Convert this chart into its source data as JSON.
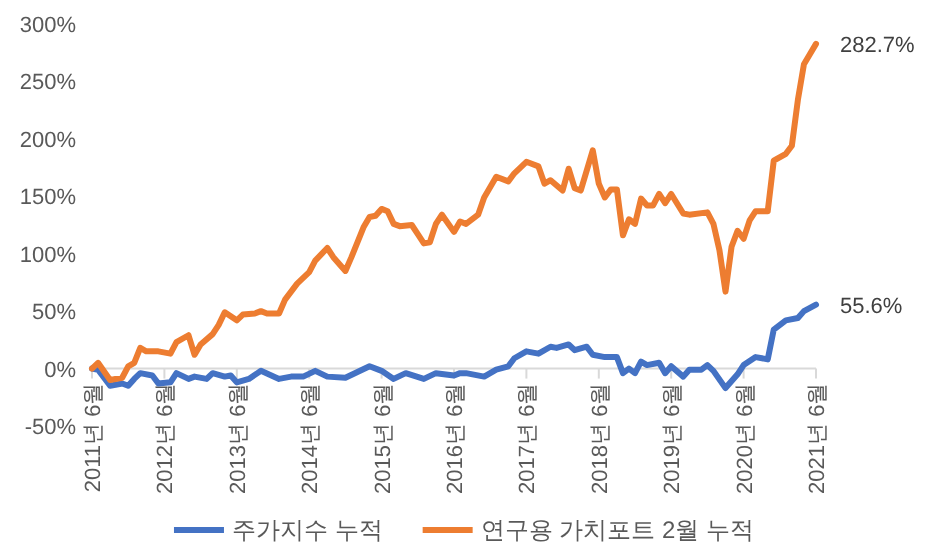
{
  "chart_data": {
    "type": "line",
    "xlim": [
      "2011-06",
      "2021-06"
    ],
    "ylim": [
      -50,
      300
    ],
    "yticks": [
      {
        "value": -50,
        "label": "-50%"
      },
      {
        "value": 0,
        "label": "0%"
      },
      {
        "value": 50,
        "label": "50%"
      },
      {
        "value": 100,
        "label": "100%"
      },
      {
        "value": 150,
        "label": "150%"
      },
      {
        "value": 200,
        "label": "200%"
      },
      {
        "value": 250,
        "label": "250%"
      },
      {
        "value": 300,
        "label": "300%"
      }
    ],
    "xticks": [
      {
        "value": "2011-06",
        "label": "2011년 6월"
      },
      {
        "value": "2012-06",
        "label": "2012년 6월"
      },
      {
        "value": "2013-06",
        "label": "2013년 6월"
      },
      {
        "value": "2014-06",
        "label": "2014년 6월"
      },
      {
        "value": "2015-06",
        "label": "2015년 6월"
      },
      {
        "value": "2016-06",
        "label": "2016년 6월"
      },
      {
        "value": "2017-06",
        "label": "2017년 6월"
      },
      {
        "value": "2018-06",
        "label": "2018년 6월"
      },
      {
        "value": "2019-06",
        "label": "2019년 6월"
      },
      {
        "value": "2020-06",
        "label": "2020년 6월"
      },
      {
        "value": "2021-06",
        "label": "2021년 6월"
      }
    ],
    "grid": false,
    "legend": "bottom",
    "marker": "none",
    "line_style": "solid",
    "series": [
      {
        "name": "주가지수 누적",
        "color": "#4472c4",
        "x": [
          "2011-06",
          "2011-07",
          "2011-09",
          "2011-11",
          "2011-12",
          "2012-01",
          "2012-02",
          "2012-04",
          "2012-05",
          "2012-07",
          "2012-08",
          "2012-10",
          "2012-11",
          "2013-01",
          "2013-02",
          "2013-04",
          "2013-05",
          "2013-06",
          "2013-08",
          "2013-10",
          "2014-01",
          "2014-03",
          "2014-05",
          "2014-07",
          "2014-09",
          "2014-12",
          "2015-02",
          "2015-04",
          "2015-06",
          "2015-08",
          "2015-10",
          "2016-01",
          "2016-03",
          "2016-06",
          "2016-07",
          "2016-08",
          "2016-11",
          "2017-01",
          "2017-03",
          "2017-04",
          "2017-06",
          "2017-08",
          "2017-10",
          "2017-11",
          "2018-01",
          "2018-02",
          "2018-04",
          "2018-05",
          "2018-07",
          "2018-09",
          "2018-10",
          "2018-11",
          "2018-12",
          "2019-01",
          "2019-02",
          "2019-04",
          "2019-05",
          "2019-06",
          "2019-08",
          "2019-09",
          "2019-11",
          "2019-12",
          "2020-01",
          "2020-03",
          "2020-05",
          "2020-06",
          "2020-08",
          "2020-10",
          "2020-11",
          "2021-01",
          "2021-03",
          "2021-04",
          "2021-06"
        ],
        "values": [
          0,
          -1,
          -15,
          -13,
          -15,
          -9,
          -4,
          -6,
          -13,
          -12,
          -4,
          -9,
          -7,
          -9,
          -4,
          -7,
          -6,
          -12,
          -9,
          -2,
          -9,
          -7,
          -7,
          -2,
          -7,
          -8,
          -3,
          2,
          -2,
          -9,
          -4,
          -9,
          -4,
          -6,
          -4,
          -4,
          -7,
          -1,
          2,
          9,
          15,
          13,
          19,
          18,
          21,
          16,
          19,
          12,
          10,
          10,
          -4,
          0,
          -4,
          6,
          3,
          5,
          -4,
          2,
          -7,
          -1,
          -1,
          3,
          -2,
          -17,
          -5,
          3,
          10,
          8,
          34,
          42,
          44,
          50,
          55.6
        ]
      },
      {
        "name": "연구용 가치포트 2월 누적",
        "color": "#ed7d31",
        "x": [
          "2011-06",
          "2011-07",
          "2011-09",
          "2011-11",
          "2011-12",
          "2012-01",
          "2012-02",
          "2012-03",
          "2012-05",
          "2012-07",
          "2012-08",
          "2012-10",
          "2012-11",
          "2012-12",
          "2013-02",
          "2013-03",
          "2013-04",
          "2013-06",
          "2013-07",
          "2013-09",
          "2013-10",
          "2013-11",
          "2014-01",
          "2014-02",
          "2014-04",
          "2014-06",
          "2014-07",
          "2014-09",
          "2014-10",
          "2014-12",
          "2015-01",
          "2015-03",
          "2015-04",
          "2015-05",
          "2015-06",
          "2015-07",
          "2015-08",
          "2015-09",
          "2015-11",
          "2015-12",
          "2016-01",
          "2016-02",
          "2016-03",
          "2016-04",
          "2016-06",
          "2016-07",
          "2016-08",
          "2016-10",
          "2016-11",
          "2017-01",
          "2017-03",
          "2017-04",
          "2017-06",
          "2017-08",
          "2017-09",
          "2017-10",
          "2017-12",
          "2018-01",
          "2018-02",
          "2018-03",
          "2018-05",
          "2018-06",
          "2018-07",
          "2018-08",
          "2018-09",
          "2018-10",
          "2018-11",
          "2018-12",
          "2019-01",
          "2019-02",
          "2019-03",
          "2019-04",
          "2019-05",
          "2019-06",
          "2019-08",
          "2019-09",
          "2019-12",
          "2020-01",
          "2020-02",
          "2020-03",
          "2020-04",
          "2020-05",
          "2020-06",
          "2020-07",
          "2020-08",
          "2020-10",
          "2020-11",
          "2021-01",
          "2021-02",
          "2021-03",
          "2021-04",
          "2021-06"
        ],
        "values": [
          0,
          5,
          -10,
          -8,
          2,
          5,
          18,
          15,
          15,
          13,
          23,
          29,
          12,
          21,
          30,
          38,
          49,
          42,
          47,
          48,
          50,
          48,
          48,
          60,
          74,
          84,
          94,
          105,
          97,
          85,
          97,
          123,
          132,
          133,
          139,
          137,
          126,
          124,
          125,
          117,
          109,
          110,
          126,
          134,
          119,
          128,
          126,
          134,
          149,
          167,
          163,
          170,
          180,
          176,
          161,
          164,
          155,
          174,
          157,
          155,
          190,
          161,
          149,
          156,
          156,
          116,
          130,
          126,
          148,
          142,
          142,
          152,
          144,
          152,
          135,
          134,
          136,
          126,
          103,
          67,
          106,
          120,
          113,
          129,
          137,
          137,
          181,
          187,
          194,
          234,
          265,
          282.7
        ]
      }
    ],
    "annotations": [
      {
        "text": "282.7%",
        "x": "2021-06",
        "y": 282.7
      },
      {
        "text": "55.6%",
        "x": "2021-06",
        "y": 55.6
      }
    ]
  }
}
